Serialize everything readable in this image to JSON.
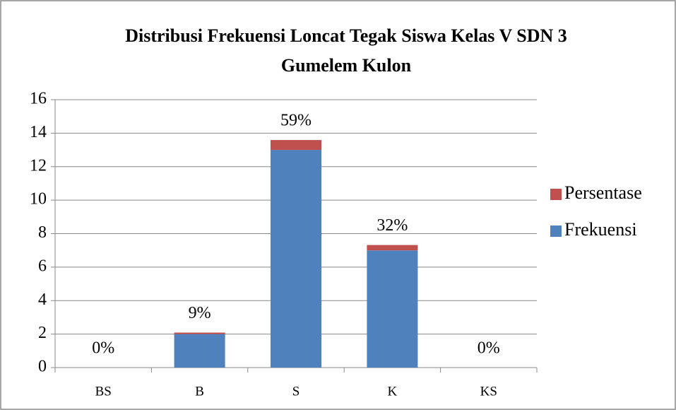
{
  "chart_data": {
    "type": "stacked_bar",
    "title": "Distribusi Frekuensi Loncat Tegak Siswa Kelas V SDN 3 Gumelem Kulon",
    "categories": [
      "BS",
      "B",
      "S",
      "K",
      "KS"
    ],
    "series": [
      {
        "name": "Frekuensi",
        "color": "#4f81bd",
        "values": [
          0,
          2,
          13,
          7,
          0
        ]
      },
      {
        "name": "Persentase",
        "color": "#c0504d",
        "values": [
          0,
          0.09,
          0.59,
          0.32,
          0
        ],
        "value_labels": [
          "0%",
          "9%",
          "59%",
          "32%",
          "0%"
        ]
      }
    ],
    "ylim": [
      0,
      16
    ],
    "yticks": [
      0,
      2,
      4,
      6,
      8,
      10,
      12,
      14,
      16
    ],
    "grid": true,
    "legend": "right"
  }
}
